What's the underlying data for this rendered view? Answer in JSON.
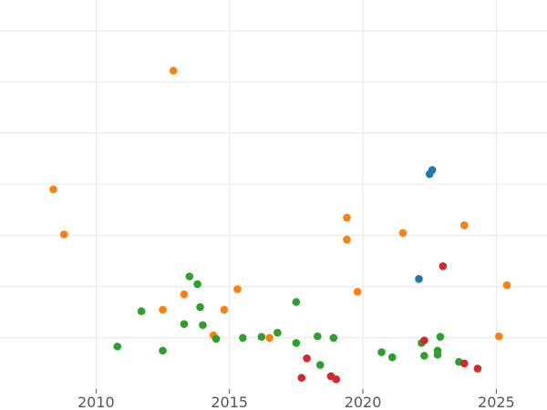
{
  "chart_data": {
    "type": "scatter",
    "title": "",
    "xlabel": "",
    "ylabel": "",
    "xlim": [
      2006.4,
      2026.9
    ],
    "ylim": [
      0,
      7.6
    ],
    "x_ticks": [
      2010,
      2015,
      2020,
      2025
    ],
    "x_tick_labels": [
      "2010",
      "2015",
      "2020",
      "2025"
    ],
    "y_gridlines": [
      1,
      2,
      3,
      4,
      5,
      6,
      7
    ],
    "grid": true,
    "legend": "none",
    "series": [
      {
        "color": "#1f77b4",
        "points": [
          {
            "x": 2022.1,
            "y": 2.15
          },
          {
            "x": 2022.5,
            "y": 4.2
          },
          {
            "x": 2022.6,
            "y": 4.28
          }
        ]
      },
      {
        "color": "#ff7f0e",
        "points": [
          {
            "x": 2008.4,
            "y": 3.9
          },
          {
            "x": 2008.8,
            "y": 3.02
          },
          {
            "x": 2012.5,
            "y": 1.55
          },
          {
            "x": 2012.9,
            "y": 6.22
          },
          {
            "x": 2013.3,
            "y": 1.85
          },
          {
            "x": 2014.4,
            "y": 1.05
          },
          {
            "x": 2014.8,
            "y": 1.55
          },
          {
            "x": 2015.3,
            "y": 1.95
          },
          {
            "x": 2016.5,
            "y": 1.0
          },
          {
            "x": 2019.4,
            "y": 3.35
          },
          {
            "x": 2019.4,
            "y": 2.92
          },
          {
            "x": 2019.8,
            "y": 1.9
          },
          {
            "x": 2021.5,
            "y": 3.05
          },
          {
            "x": 2023.8,
            "y": 3.2
          },
          {
            "x": 2025.1,
            "y": 1.03
          },
          {
            "x": 2025.4,
            "y": 2.03
          }
        ]
      },
      {
        "color": "#2ca02c",
        "points": [
          {
            "x": 2010.8,
            "y": 0.83
          },
          {
            "x": 2011.7,
            "y": 1.52
          },
          {
            "x": 2012.5,
            "y": 0.75
          },
          {
            "x": 2013.3,
            "y": 1.27
          },
          {
            "x": 2013.5,
            "y": 2.2
          },
          {
            "x": 2013.8,
            "y": 2.05
          },
          {
            "x": 2013.9,
            "y": 1.6
          },
          {
            "x": 2014.0,
            "y": 1.25
          },
          {
            "x": 2014.5,
            "y": 0.98
          },
          {
            "x": 2015.5,
            "y": 1.0
          },
          {
            "x": 2016.2,
            "y": 1.02
          },
          {
            "x": 2016.8,
            "y": 1.1
          },
          {
            "x": 2017.5,
            "y": 1.7
          },
          {
            "x": 2017.5,
            "y": 0.9
          },
          {
            "x": 2018.3,
            "y": 1.03
          },
          {
            "x": 2018.4,
            "y": 0.47
          },
          {
            "x": 2018.9,
            "y": 1.0
          },
          {
            "x": 2020.7,
            "y": 0.72
          },
          {
            "x": 2021.1,
            "y": 0.62
          },
          {
            "x": 2022.2,
            "y": 0.9
          },
          {
            "x": 2022.3,
            "y": 0.65
          },
          {
            "x": 2022.8,
            "y": 0.75
          },
          {
            "x": 2022.8,
            "y": 0.67
          },
          {
            "x": 2022.9,
            "y": 1.02
          },
          {
            "x": 2023.6,
            "y": 0.53
          }
        ]
      },
      {
        "color": "#d62728",
        "points": [
          {
            "x": 2017.7,
            "y": 0.22
          },
          {
            "x": 2017.9,
            "y": 0.6
          },
          {
            "x": 2018.8,
            "y": 0.25
          },
          {
            "x": 2019.0,
            "y": 0.19
          },
          {
            "x": 2022.3,
            "y": 0.95
          },
          {
            "x": 2023.0,
            "y": 2.4
          },
          {
            "x": 2023.8,
            "y": 0.5
          },
          {
            "x": 2024.3,
            "y": 0.4
          }
        ]
      }
    ]
  }
}
